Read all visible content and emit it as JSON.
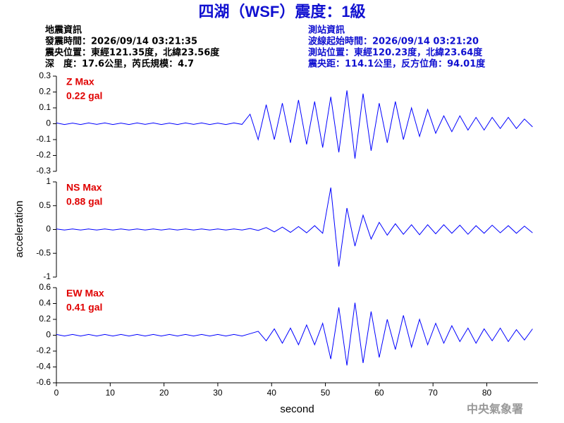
{
  "header": {
    "title": "四湖（WSF）震度：1級",
    "left": [
      "地震資訊",
      "發震時間：2026/09/14 03:21:35",
      "震央位置：東經121.35度，北緯23.56度",
      "深　度：17.6公里，芮氏規模：4.7"
    ],
    "right": [
      "測站資訊",
      "波線起始時間：2026/09/14 03:21:20",
      "測站位置：東經120.23度，北緯23.64度",
      "震央距：114.1公里，反方位角：94.01度"
    ]
  },
  "y_label": "acceleration",
  "footer": "中央氣象署",
  "chart_data": [
    {
      "type": "line",
      "annotations": [
        "Z Max",
        "0.22 gal"
      ],
      "color": "#0000ff",
      "ylim": [
        -0.3,
        0.3
      ],
      "yticks": [
        -0.3,
        -0.2,
        -0.1,
        0,
        0.1,
        0.2,
        0.3
      ],
      "xlim": [
        0,
        89.5
      ],
      "x": [
        0,
        1.5,
        3,
        4.5,
        6,
        7.5,
        9,
        10.5,
        12,
        13.5,
        15,
        16.5,
        18,
        19.5,
        21,
        22.5,
        24,
        25.5,
        27,
        28.5,
        30,
        31.5,
        33,
        34.5,
        36,
        37.5,
        39,
        40.5,
        42,
        43.5,
        45,
        46.5,
        48,
        49.5,
        51,
        52.5,
        54,
        55.5,
        57,
        58.5,
        60,
        61.5,
        63,
        64.5,
        66,
        67.5,
        69,
        70.5,
        72,
        73.5,
        75,
        76.5,
        78,
        79.5,
        81,
        82.5,
        84,
        85.5,
        87,
        88.5
      ],
      "values": [
        0.005,
        -0.005,
        0.004,
        -0.005,
        0.005,
        -0.004,
        0.005,
        -0.005,
        0.004,
        -0.005,
        0.005,
        -0.004,
        0.005,
        -0.005,
        0.004,
        -0.005,
        0.005,
        -0.004,
        0.005,
        -0.005,
        0.004,
        -0.005,
        0.005,
        -0.004,
        0.06,
        -0.1,
        0.12,
        -0.1,
        0.13,
        -0.12,
        0.15,
        -0.13,
        0.14,
        -0.15,
        0.17,
        -0.18,
        0.21,
        -0.22,
        0.19,
        -0.17,
        0.13,
        -0.12,
        0.14,
        -0.1,
        0.1,
        -0.08,
        0.09,
        -0.06,
        0.05,
        -0.05,
        0.05,
        -0.04,
        0.04,
        -0.04,
        0.04,
        -0.03,
        0.04,
        -0.03,
        0.03,
        -0.02
      ]
    },
    {
      "type": "line",
      "annotations": [
        "NS Max",
        "0.88 gal"
      ],
      "color": "#0000ff",
      "ylim": [
        -1,
        1
      ],
      "yticks": [
        -1,
        -0.5,
        0,
        0.5,
        1
      ],
      "xlim": [
        0,
        89.5
      ],
      "x": [
        0,
        1.5,
        3,
        4.5,
        6,
        7.5,
        9,
        10.5,
        12,
        13.5,
        15,
        16.5,
        18,
        19.5,
        21,
        22.5,
        24,
        25.5,
        27,
        28.5,
        30,
        31.5,
        33,
        34.5,
        36,
        37.5,
        39,
        40.5,
        42,
        43.5,
        45,
        46.5,
        48,
        49.5,
        51,
        52.5,
        54,
        55.5,
        57,
        58.5,
        60,
        61.5,
        63,
        64.5,
        66,
        67.5,
        69,
        70.5,
        72,
        73.5,
        75,
        76.5,
        78,
        79.5,
        81,
        82.5,
        84,
        85.5,
        87,
        88.5
      ],
      "values": [
        0.01,
        -0.01,
        0.01,
        -0.01,
        0.01,
        -0.01,
        0.01,
        -0.01,
        0.01,
        -0.01,
        0.01,
        -0.01,
        0.01,
        -0.01,
        0.01,
        -0.01,
        0.01,
        -0.01,
        0.01,
        -0.01,
        0.01,
        -0.01,
        0.01,
        -0.01,
        0.02,
        -0.02,
        0.04,
        -0.05,
        0.05,
        -0.06,
        0.06,
        -0.07,
        0.08,
        -0.08,
        0.88,
        -0.78,
        0.45,
        -0.35,
        0.3,
        -0.2,
        0.15,
        -0.12,
        0.12,
        -0.1,
        0.1,
        -0.11,
        0.1,
        -0.09,
        0.1,
        -0.08,
        0.09,
        -0.1,
        0.08,
        -0.08,
        0.09,
        -0.07,
        0.08,
        -0.08,
        0.07,
        -0.07
      ]
    },
    {
      "type": "line",
      "annotations": [
        "EW Max",
        "0.41 gal"
      ],
      "color": "#0000ff",
      "ylim": [
        -0.6,
        0.6
      ],
      "yticks": [
        -0.6,
        -0.4,
        -0.2,
        0,
        0.2,
        0.4,
        0.6
      ],
      "xlim": [
        0,
        89.5
      ],
      "xticks": [
        0,
        10,
        20,
        30,
        40,
        50,
        60,
        70,
        80
      ],
      "x_label": "second",
      "x": [
        0,
        1.5,
        3,
        4.5,
        6,
        7.5,
        9,
        10.5,
        12,
        13.5,
        15,
        16.5,
        18,
        19.5,
        21,
        22.5,
        24,
        25.5,
        27,
        28.5,
        30,
        31.5,
        33,
        34.5,
        36,
        37.5,
        39,
        40.5,
        42,
        43.5,
        45,
        46.5,
        48,
        49.5,
        51,
        52.5,
        54,
        55.5,
        57,
        58.5,
        60,
        61.5,
        63,
        64.5,
        66,
        67.5,
        69,
        70.5,
        72,
        73.5,
        75,
        76.5,
        78,
        79.5,
        81,
        82.5,
        84,
        85.5,
        87,
        88.5
      ],
      "values": [
        0.01,
        -0.01,
        0.01,
        -0.01,
        0.01,
        -0.01,
        0.01,
        -0.01,
        0.01,
        -0.01,
        0.01,
        -0.01,
        0.01,
        -0.01,
        0.01,
        -0.01,
        0.01,
        -0.01,
        0.01,
        -0.01,
        0.01,
        -0.01,
        0.01,
        -0.01,
        0.02,
        0.05,
        -0.07,
        0.08,
        -0.1,
        0.09,
        -0.12,
        0.13,
        -0.12,
        0.15,
        -0.3,
        0.35,
        -0.38,
        0.41,
        -0.35,
        0.3,
        -0.28,
        0.2,
        -0.18,
        0.25,
        -0.15,
        0.2,
        -0.12,
        0.15,
        -0.1,
        0.12,
        -0.08,
        0.09,
        -0.1,
        0.08,
        -0.07,
        0.09,
        -0.08,
        0.07,
        -0.06,
        0.08
      ]
    }
  ]
}
